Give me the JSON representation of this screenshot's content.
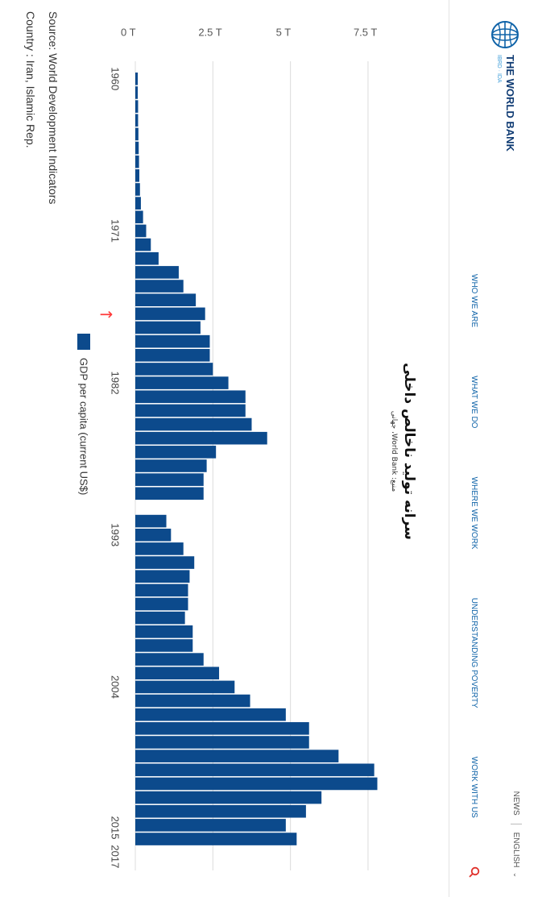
{
  "header": {
    "logo_text": "THE WORLD BANK",
    "logo_sub": "IBRD · IDA",
    "top_links": [
      "NEWS",
      "ENGLISH"
    ],
    "nav": [
      "WHO WE ARE",
      "WHAT WE DO",
      "WHERE WE WORK",
      "UNDERSTANDING POVERTY",
      "WORK WITH US"
    ]
  },
  "title": {
    "main": "سرانه تولید ناخالص داخلی",
    "sub": "منبع: World Bank، جهانی"
  },
  "chart_data": {
    "type": "bar",
    "x_tick_labels": [
      "1960",
      "1971",
      "1982",
      "1993",
      "2004",
      "2015",
      "2017"
    ],
    "y_tick_labels": [
      "0 T",
      "2.5 T",
      "5 T",
      "7.5 T"
    ],
    "ylim": [
      0,
      9.5
    ],
    "grid": true,
    "legend": "GDP per capita (current US$)",
    "legend_position": "bottom",
    "marker_label": "→",
    "marker_year": 1977,
    "series": [
      {
        "color": "#0c4a8c",
        "data": [
          [
            1960,
            0.08
          ],
          [
            1961,
            0.08
          ],
          [
            1962,
            0.09
          ],
          [
            1963,
            0.09
          ],
          [
            1964,
            0.1
          ],
          [
            1965,
            0.11
          ],
          [
            1966,
            0.12
          ],
          [
            1967,
            0.13
          ],
          [
            1968,
            0.15
          ],
          [
            1969,
            0.18
          ],
          [
            1970,
            0.25
          ],
          [
            1971,
            0.35
          ],
          [
            1972,
            0.5
          ],
          [
            1973,
            0.75
          ],
          [
            1974,
            1.4
          ],
          [
            1975,
            1.55
          ],
          [
            1976,
            1.95
          ],
          [
            1977,
            2.25
          ],
          [
            1978,
            2.1
          ],
          [
            1979,
            2.4
          ],
          [
            1980,
            2.4
          ],
          [
            1981,
            2.5
          ],
          [
            1982,
            3.0
          ],
          [
            1983,
            3.55
          ],
          [
            1984,
            3.55
          ],
          [
            1985,
            3.75
          ],
          [
            1986,
            4.25
          ],
          [
            1987,
            2.6
          ],
          [
            1988,
            2.3
          ],
          [
            1989,
            2.2
          ],
          [
            1990,
            2.2
          ],
          [
            1992,
            1.0
          ],
          [
            1993,
            1.15
          ],
          [
            1994,
            1.55
          ],
          [
            1995,
            1.9
          ],
          [
            1996,
            1.75
          ],
          [
            1997,
            1.7
          ],
          [
            1998,
            1.7
          ],
          [
            1999,
            1.6
          ],
          [
            2000,
            1.85
          ],
          [
            2001,
            1.85
          ],
          [
            2002,
            2.2
          ],
          [
            2003,
            2.7
          ],
          [
            2004,
            3.2
          ],
          [
            2005,
            3.7
          ],
          [
            2006,
            4.85
          ],
          [
            2007,
            5.6
          ],
          [
            2008,
            5.6
          ],
          [
            2009,
            6.55
          ],
          [
            2010,
            7.7
          ],
          [
            2011,
            7.8
          ],
          [
            2012,
            6.0
          ],
          [
            2013,
            5.5
          ],
          [
            2014,
            4.85
          ],
          [
            2015,
            5.2
          ]
        ]
      }
    ],
    "source": "Source: World Development Indicators",
    "country": "Country : Iran, Islamic Rep."
  },
  "colors": {
    "bar": "#0c4a8c",
    "grid": "#dcdcdc",
    "marker": "#ff3b3b",
    "nav": "#0f63a8"
  }
}
